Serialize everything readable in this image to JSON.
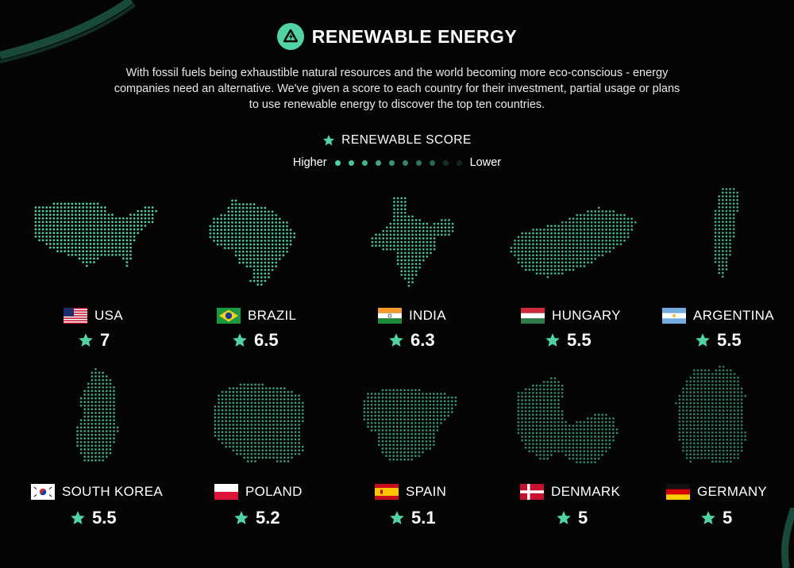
{
  "header": {
    "title": "RENEWABLE ENERGY",
    "intro_lines": [
      "With fossil fuels being exhaustible natural resources and the world becoming more eco-conscious - energy",
      "companies need an alternative. We've given a score to each country for their investment, partial usage or plans",
      "to use renewable energy to discover the top ten countries."
    ]
  },
  "legend": {
    "title": "RENEWABLE SCORE",
    "higher_label": "Higher",
    "lower_label": "Lower",
    "dot_count": 10
  },
  "colors": {
    "accent": "#52d3a3",
    "background": "#050505",
    "text": "#ffffff"
  },
  "countries": [
    {
      "name": "USA",
      "score": "7",
      "flag_icon": "usa-flag-icon",
      "map_icon": "usa-map-icon"
    },
    {
      "name": "BRAZIL",
      "score": "6.5",
      "flag_icon": "brazil-flag-icon",
      "map_icon": "brazil-map-icon"
    },
    {
      "name": "INDIA",
      "score": "6.3",
      "flag_icon": "india-flag-icon",
      "map_icon": "india-map-icon"
    },
    {
      "name": "HUNGARY",
      "score": "5.5",
      "flag_icon": "hungary-flag-icon",
      "map_icon": "hungary-map-icon"
    },
    {
      "name": "ARGENTINA",
      "score": "5.5",
      "flag_icon": "argentina-flag-icon",
      "map_icon": "argentina-map-icon"
    },
    {
      "name": "SOUTH KOREA",
      "score": "5.5",
      "flag_icon": "south-korea-flag-icon",
      "map_icon": "south-korea-map-icon"
    },
    {
      "name": "POLAND",
      "score": "5.2",
      "flag_icon": "poland-flag-icon",
      "map_icon": "poland-map-icon"
    },
    {
      "name": "SPAIN",
      "score": "5.1",
      "flag_icon": "spain-flag-icon",
      "map_icon": "spain-map-icon"
    },
    {
      "name": "DENMARK",
      "score": "5",
      "flag_icon": "denmark-flag-icon",
      "map_icon": "denmark-map-icon"
    },
    {
      "name": "GERMANY",
      "score": "5",
      "flag_icon": "germany-flag-icon",
      "map_icon": "germany-map-icon"
    }
  ]
}
